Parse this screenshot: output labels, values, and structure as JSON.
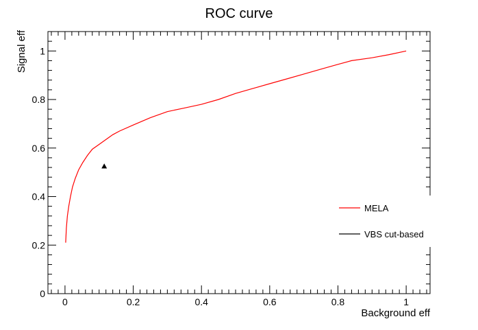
{
  "chart_data": {
    "type": "line",
    "title": "ROC curve",
    "xlabel": "Background eff",
    "ylabel": "Signal eff",
    "xlim": [
      -0.05,
      1.07
    ],
    "ylim": [
      0,
      1.08
    ],
    "x_ticks": [
      {
        "value": 0,
        "label": "0"
      },
      {
        "value": 0.2,
        "label": "0.2"
      },
      {
        "value": 0.4,
        "label": "0.4"
      },
      {
        "value": 0.6,
        "label": "0.6"
      },
      {
        "value": 0.8,
        "label": "0.8"
      },
      {
        "value": 1,
        "label": "1"
      }
    ],
    "y_ticks": [
      {
        "value": 0,
        "label": "0"
      },
      {
        "value": 0.2,
        "label": "0.2"
      },
      {
        "value": 0.4,
        "label": "0.4"
      },
      {
        "value": 0.6,
        "label": "0.6"
      },
      {
        "value": 0.8,
        "label": "0.8"
      },
      {
        "value": 1,
        "label": "1"
      }
    ],
    "grid": false,
    "legend_position": "right",
    "series": [
      {
        "name": "MELA",
        "color": "#ff0000",
        "marker": "none",
        "x": [
          0.002,
          0.004,
          0.007,
          0.011,
          0.016,
          0.022,
          0.03,
          0.04,
          0.052,
          0.066,
          0.08,
          0.1,
          0.12,
          0.14,
          0.16,
          0.2,
          0.25,
          0.3,
          0.35,
          0.4,
          0.45,
          0.5,
          0.55,
          0.6,
          0.65,
          0.7,
          0.75,
          0.8,
          0.84,
          0.9,
          0.95,
          1.0
        ],
        "y": [
          0.21,
          0.27,
          0.32,
          0.36,
          0.4,
          0.44,
          0.475,
          0.51,
          0.54,
          0.57,
          0.595,
          0.615,
          0.635,
          0.655,
          0.67,
          0.695,
          0.725,
          0.75,
          0.765,
          0.78,
          0.8,
          0.825,
          0.845,
          0.865,
          0.885,
          0.905,
          0.925,
          0.945,
          0.96,
          0.972,
          0.985,
          1.0
        ]
      },
      {
        "name": "VBS cut-based",
        "color": "#000000",
        "marker": "triangle",
        "x": [
          0.115
        ],
        "y": [
          0.525
        ]
      }
    ]
  }
}
